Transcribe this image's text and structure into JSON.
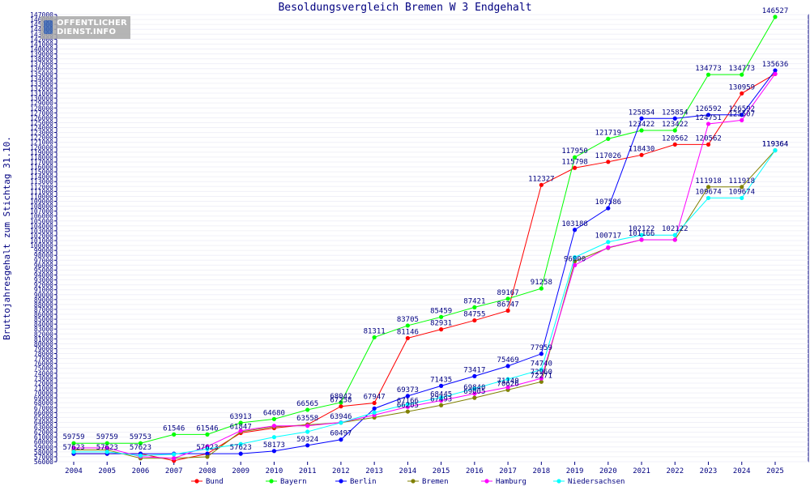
{
  "chart_data": {
    "type": "line",
    "title": "Besoldungsvergleich Bremen W 3 Endgehalt",
    "ylabel": "Bruttojahresgehalt zum Stichtag 31.10.",
    "xlabel": "",
    "ylim": [
      56000,
      147000
    ],
    "ytick_step": 1000,
    "grid": true,
    "legend_position": "bottom",
    "x": [
      "2004",
      "2005",
      "2006",
      "2007",
      "2008",
      "2009",
      "2010",
      "2011",
      "2012",
      "2013",
      "2014",
      "2015",
      "2016",
      "2017",
      "2018",
      "2019",
      "2020",
      "2021",
      "2022",
      "2023",
      "2024",
      "2025"
    ],
    "series": [
      {
        "name": "Bund",
        "color": "#ff0000",
        "values": [
          57623,
          57623,
          57623,
          56200,
          57623,
          61847,
          62843,
          63558,
          67258,
          67947,
          81146,
          82931,
          84755,
          86747,
          112327,
          115798,
          117026,
          118430,
          120562,
          120562,
          130959,
          134928
        ]
      },
      {
        "name": "Bayern",
        "color": "#00ff00",
        "values": [
          59759,
          59759,
          59753,
          61546,
          61546,
          63913,
          64680,
          66565,
          68042,
          81311,
          83705,
          85459,
          87421,
          89167,
          91258,
          117950,
          121719,
          123422,
          123422,
          134773,
          134773,
          146527
        ]
      },
      {
        "name": "Berlin",
        "color": "#0000ff",
        "values": [
          57623,
          57623,
          57623,
          57623,
          57623,
          57623,
          58173,
          59324,
          60497,
          66823,
          69373,
          71435,
          73417,
          75469,
          77959,
          103188,
          107586,
          125854,
          125854,
          126592,
          126592,
          135636
        ]
      },
      {
        "name": "Bremen",
        "color": "#808000",
        "values": [
          58400,
          58400,
          56700,
          56700,
          57000,
          62100,
          63100,
          63500,
          63946,
          65000,
          66205,
          67493,
          69005,
          70626,
          72271,
          96775,
          99517,
          101166,
          101166,
          111918,
          111918,
          119364
        ]
      },
      {
        "name": "Hamburg",
        "color": "#ff00ff",
        "values": [
          58800,
          58800,
          57024,
          56700,
          59100,
          62300,
          63300,
          63300,
          64000,
          65500,
          67166,
          68445,
          69840,
          71140,
          72960,
          96000,
          99600,
          101166,
          101166,
          124751,
          125507,
          134928
        ]
      },
      {
        "name": "Niedersachsen",
        "color": "#00ffff",
        "values": [
          58000,
          58000,
          57240,
          57500,
          58600,
          59600,
          61000,
          62100,
          63946,
          66000,
          67700,
          69045,
          70888,
          72800,
          74740,
          97600,
          100717,
          102122,
          102122,
          109674,
          109674,
          119364
        ]
      }
    ],
    "labels_printed": {
      "Bund": [
        "57623",
        "57623",
        "57623",
        "",
        "57623",
        "61847",
        "",
        "63558",
        "67258",
        "67947",
        "81146",
        "82931",
        "84755",
        "86747",
        "112327",
        "115798",
        "117026",
        "118430",
        "120562",
        "120562",
        "130959",
        ""
      ],
      "Bayern": [
        "59759",
        "59759",
        "59753",
        "61546",
        "61546",
        "63913",
        "64680",
        "66565",
        "68042",
        "81311",
        "83705",
        "85459",
        "87421",
        "89167",
        "91258",
        "117950",
        "121719",
        "123422",
        "123422",
        "134773",
        "134773",
        "146527"
      ],
      "Berlin": [
        "",
        "",
        "",
        "",
        "",
        "57623",
        "58173",
        "59324",
        "60497",
        "",
        "69373",
        "71435",
        "73417",
        "75469",
        "77959",
        "103188",
        "107586",
        "125854",
        "125854",
        "126592",
        "126592",
        "135636"
      ],
      "Bremen": [
        "",
        "",
        "",
        "",
        "",
        "",
        "",
        "",
        "63946",
        "",
        "66205",
        "67493",
        "69005",
        "70626",
        "72271",
        "",
        "",
        "101166",
        "",
        "111918",
        "111918",
        "119364"
      ],
      "Hamburg": [
        "",
        "",
        "",
        "",
        "",
        "",
        "",
        "",
        "",
        "",
        "67166",
        "68445",
        "69840",
        "71140",
        "72960",
        "96000",
        "",
        "",
        "",
        "124751",
        "125507",
        ""
      ],
      "Niedersachsen": [
        "",
        "",
        "",
        "",
        "",
        "",
        "",
        "",
        "",
        "",
        "",
        "",
        "",
        "",
        "74740",
        "",
        "100717",
        "102122",
        "102122",
        "109674",
        "109674",
        "119364"
      ]
    }
  },
  "logo": {
    "line1": "OFFENTLICHER",
    "line2": "DIENST.INFO"
  }
}
